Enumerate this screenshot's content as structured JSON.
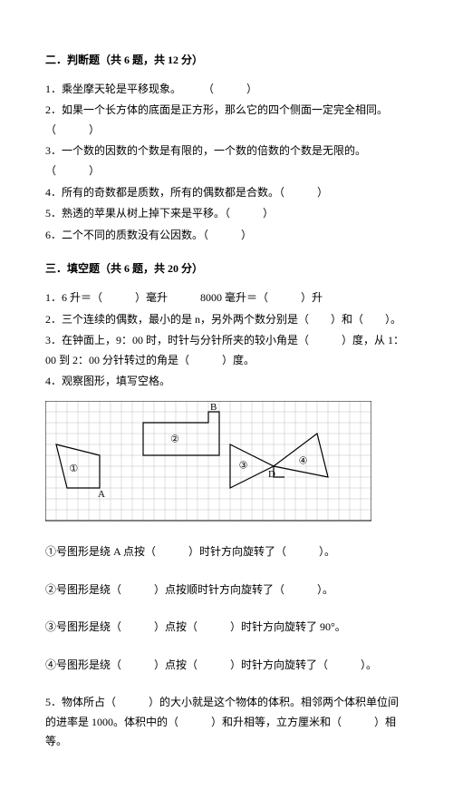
{
  "section2": {
    "title": "二．判断题（共 6 题，共 12 分）",
    "q1": "1．乘坐摩天轮是平移现象。　　　（　　　）",
    "q2": "2．如果一个长方体的底面是正方形，那么它的四个侧面一定完全相同。（　　　）",
    "q3": "3．一个数的因数的个数是有限的，一个数的倍数的个数是无限的。（　　　）",
    "q4": "4．所有的奇数都是质数，所有的偶数都是合数。（　　　）",
    "q5": "5．熟透的苹果从树上掉下来是平移。（　　　）",
    "q6": "6．二个不同的质数没有公因数。（　　　）"
  },
  "section3": {
    "title": "三．填空题（共 6 题，共 20 分）",
    "q1": "1．6 升＝（　　　）毫升　　　8000 毫升＝（　　　）升",
    "q2": "2．三个连续的偶数，最小的是 n，另外两个数分别是（　　）和（　　）。",
    "q3": "3．在钟面上，9：00 时，时针与分针所夹的较小角是（　　　）度，从 1：00 到 2：00 分针转过的角是（　　　）度。",
    "q4": "4．观察图形，填写空格。",
    "sub1": "①号图形是绕 A 点按（　　　）时针方向旋转了（　　　）。",
    "sub2": "②号图形是绕（　　　）点按顺时针方向旋转了（　　　）。",
    "sub3": "③号图形是绕（　　　）点按（　　　）时针方向旋转了 90°。",
    "sub4": "④号图形是绕（　　　）点按（　　　）时针方向旋转了（　　　）。",
    "q5": "5．物体所占（　　　）的大小就是这个物体的体积。相邻两个体积单位间的进率是 1000。体积中的（　　　）和升相等，立方厘米和（　　　）相等。"
  },
  "figure": {
    "grid_cols": 30,
    "grid_rows": 11,
    "cell": 12,
    "grid_color": "#bfbfbf",
    "line_color": "#000000",
    "labels": {
      "A": "A",
      "B": "B",
      "D": "D",
      "n1": "①",
      "n2": "②",
      "n3": "③",
      "n4": "④"
    }
  }
}
